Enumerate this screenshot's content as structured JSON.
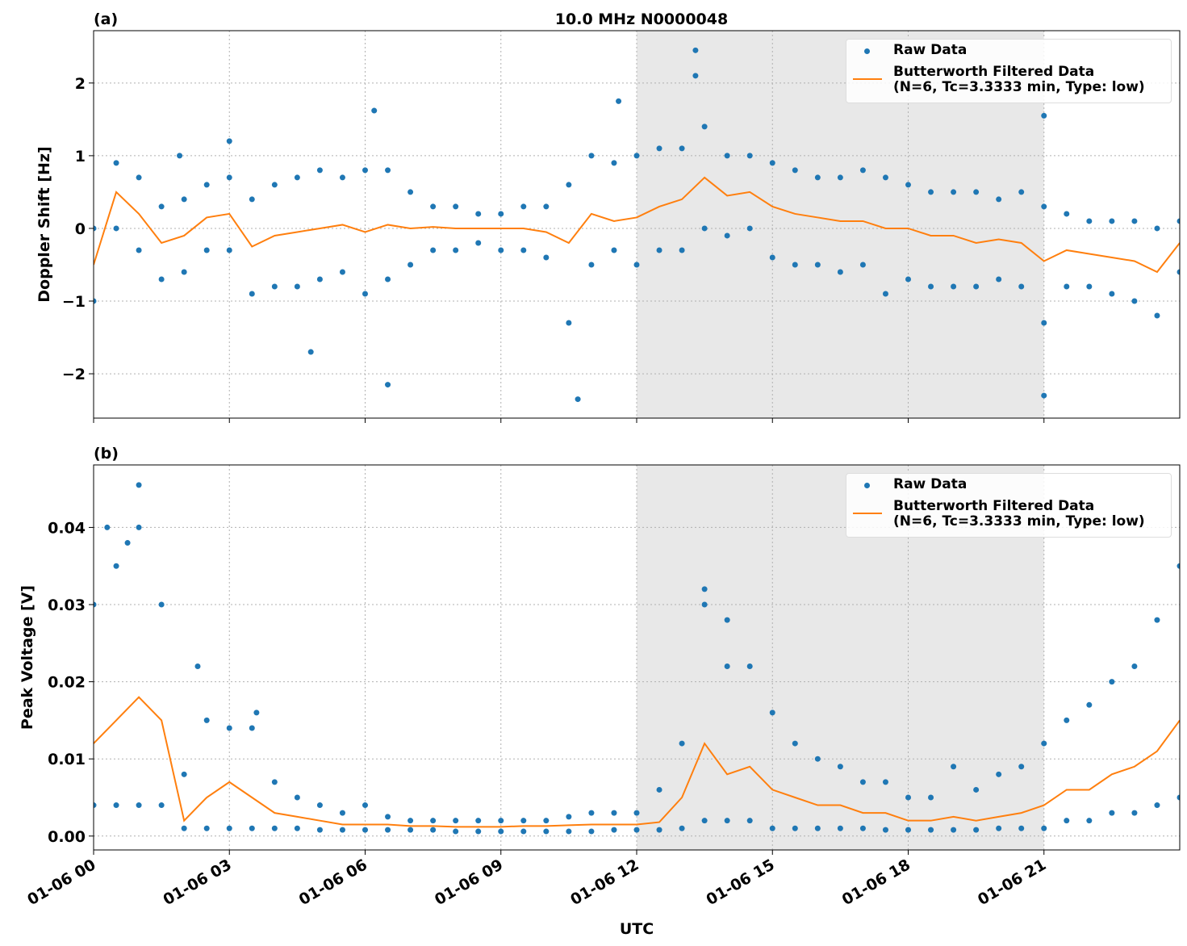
{
  "chart_data": [
    {
      "type": "scatter",
      "title": "10.0 MHz N0000048",
      "panel_label": "(a)",
      "ylabel": "Doppler Shift [Hz]",
      "xlim": [
        0,
        24
      ],
      "xticks": [
        0,
        3,
        6,
        9,
        12,
        15,
        18,
        21
      ],
      "ylim": [
        -2.61,
        2.72
      ],
      "yticks": [
        {
          "value": -2,
          "label": "−2"
        },
        {
          "value": -1,
          "label": "−1"
        },
        0,
        1,
        2
      ],
      "grid": true,
      "legend": "upper right",
      "span": [
        12,
        21
      ],
      "span_color": "#e8e8e8",
      "series": [
        {
          "name": "Raw Data",
          "type": "scatter",
          "color": "#1f77b4",
          "x": [
            0,
            0,
            0.5,
            0.5,
            1,
            1,
            1.5,
            1.5,
            2,
            2,
            2.5,
            2.5,
            3,
            3,
            3.5,
            3.5,
            4,
            4,
            4.5,
            4.5,
            5,
            5,
            5.5,
            5.5,
            6,
            6,
            6.5,
            6.5,
            7,
            7,
            7.5,
            7.5,
            8,
            8,
            8.5,
            8.5,
            9,
            9,
            9.5,
            9.5,
            10,
            10,
            10.5,
            10.5,
            11,
            11,
            11.5,
            11.5,
            12,
            12,
            12.5,
            12.5,
            13,
            13,
            13.5,
            13.5,
            14,
            14,
            14.5,
            14.5,
            15,
            15,
            15.5,
            15.5,
            16,
            16,
            16.5,
            16.5,
            17,
            17,
            17.5,
            17.5,
            18,
            18,
            18.5,
            18.5,
            19,
            19,
            19.5,
            19.5,
            20,
            20,
            20.5,
            20.5,
            21,
            21,
            21.5,
            21.5,
            22,
            22,
            22.5,
            22.5,
            23,
            23,
            23.5,
            23.5,
            24,
            24,
            6.2,
            11.6,
            13.3,
            13.3,
            10.7,
            6.5,
            21.0,
            21.0,
            1.9,
            3.0,
            4.8
          ],
          "values": [
            0.0,
            -1.0,
            0.9,
            0.0,
            0.7,
            -0.3,
            0.3,
            -0.7,
            0.4,
            -0.6,
            0.6,
            -0.3,
            0.7,
            -0.3,
            0.4,
            -0.9,
            0.6,
            -0.8,
            0.7,
            -0.8,
            0.8,
            -0.7,
            0.7,
            -0.6,
            0.8,
            -0.9,
            0.8,
            -0.7,
            0.5,
            -0.5,
            0.3,
            -0.3,
            0.3,
            -0.3,
            0.2,
            -0.2,
            0.2,
            -0.3,
            0.3,
            -0.3,
            0.3,
            -0.4,
            0.6,
            -1.3,
            1.0,
            -0.5,
            0.9,
            -0.3,
            1.0,
            -0.5,
            1.1,
            -0.3,
            1.1,
            -0.3,
            1.4,
            0.0,
            1.0,
            -0.1,
            1.0,
            0.0,
            0.9,
            -0.4,
            0.8,
            -0.5,
            0.7,
            -0.5,
            0.7,
            -0.6,
            0.8,
            -0.5,
            0.7,
            -0.9,
            0.6,
            -0.7,
            0.5,
            -0.8,
            0.5,
            -0.8,
            0.5,
            -0.8,
            0.4,
            -0.7,
            0.5,
            -0.8,
            0.3,
            -1.3,
            0.2,
            -0.8,
            0.1,
            -0.8,
            0.1,
            -0.9,
            0.1,
            -1.0,
            0.0,
            -1.2,
            0.1,
            -0.6,
            1.62,
            1.75,
            2.45,
            2.1,
            -2.35,
            -2.15,
            -2.3,
            1.55,
            1.0,
            1.2,
            -1.7
          ]
        },
        {
          "name": "Butterworth Filtered Data\n(N=6, Tc=3.3333 min, Type: low)",
          "type": "line",
          "color": "#ff7f0e",
          "x": [
            0,
            0.5,
            1,
            1.5,
            2,
            2.5,
            3,
            3.5,
            4,
            4.5,
            5,
            5.5,
            6,
            6.5,
            7,
            7.5,
            8,
            8.5,
            9,
            9.5,
            10,
            10.5,
            11,
            11.5,
            12,
            12.5,
            13,
            13.5,
            14,
            14.5,
            15,
            15.5,
            16,
            16.5,
            17,
            17.5,
            18,
            18.5,
            19,
            19.5,
            20,
            20.5,
            21,
            21.5,
            22,
            22.5,
            23,
            23.5,
            24
          ],
          "values": [
            -0.5,
            0.5,
            0.2,
            -0.2,
            -0.1,
            0.15,
            0.2,
            -0.25,
            -0.1,
            -0.05,
            0.0,
            0.05,
            -0.05,
            0.05,
            0.0,
            0.02,
            0.0,
            0.0,
            0.0,
            0.0,
            -0.05,
            -0.2,
            0.2,
            0.1,
            0.15,
            0.3,
            0.4,
            0.7,
            0.45,
            0.5,
            0.3,
            0.2,
            0.15,
            0.1,
            0.1,
            0.0,
            0.0,
            -0.1,
            -0.1,
            -0.2,
            -0.15,
            -0.2,
            -0.45,
            -0.3,
            -0.35,
            -0.4,
            -0.45,
            -0.6,
            -0.2
          ]
        }
      ]
    },
    {
      "type": "scatter",
      "panel_label": "(b)",
      "ylabel": "Peak Voltage [V]",
      "xlabel": "UTC",
      "xlim": [
        0,
        24
      ],
      "xticks": [
        {
          "value": 0,
          "label": "01-06 00"
        },
        {
          "value": 3,
          "label": "01-06 03"
        },
        {
          "value": 6,
          "label": "01-06 06"
        },
        {
          "value": 9,
          "label": "01-06 09"
        },
        {
          "value": 12,
          "label": "01-06 12"
        },
        {
          "value": 15,
          "label": "01-06 15"
        },
        {
          "value": 18,
          "label": "01-06 18"
        },
        {
          "value": 21,
          "label": "01-06 21"
        }
      ],
      "ylim": [
        -0.0018,
        0.0481
      ],
      "yticks": [
        {
          "value": 0,
          "label": "0.00"
        },
        {
          "value": 0.01,
          "label": "0.01"
        },
        {
          "value": 0.02,
          "label": "0.02"
        },
        {
          "value": 0.03,
          "label": "0.03"
        },
        {
          "value": 0.04,
          "label": "0.04"
        }
      ],
      "grid": true,
      "legend": "upper right",
      "span": [
        12,
        21
      ],
      "span_color": "#e8e8e8",
      "series": [
        {
          "name": "Raw Data",
          "type": "scatter",
          "color": "#1f77b4",
          "x": [
            0,
            0,
            0.5,
            0.5,
            1,
            1,
            1.5,
            1.5,
            2,
            2,
            2.5,
            2.5,
            3,
            3,
            3.5,
            3.5,
            4,
            4,
            4.5,
            4.5,
            5,
            5,
            5.5,
            5.5,
            6,
            6,
            6.5,
            6.5,
            7,
            7,
            7.5,
            7.5,
            8,
            8,
            8.5,
            8.5,
            9,
            9,
            9.5,
            9.5,
            10,
            10,
            10.5,
            10.5,
            11,
            11,
            11.5,
            11.5,
            12,
            12,
            12.5,
            12.5,
            13,
            13,
            13.5,
            13.5,
            14,
            14,
            14.5,
            14.5,
            15,
            15,
            15.5,
            15.5,
            16,
            16,
            16.5,
            16.5,
            17,
            17,
            17.5,
            17.5,
            18,
            18,
            18.5,
            18.5,
            19,
            19,
            19.5,
            19.5,
            20,
            20,
            20.5,
            20.5,
            21,
            21,
            21.5,
            21.5,
            22,
            22,
            22.5,
            22.5,
            23,
            23,
            23.5,
            23.5,
            24,
            24,
            1.0,
            0.3,
            0.75,
            13.5,
            14.0,
            2.3,
            3.6
          ],
          "values": [
            0.03,
            0.004,
            0.035,
            0.004,
            0.04,
            0.004,
            0.03,
            0.004,
            0.008,
            0.001,
            0.015,
            0.001,
            0.014,
            0.001,
            0.014,
            0.001,
            0.007,
            0.001,
            0.005,
            0.001,
            0.004,
            0.0008,
            0.003,
            0.0008,
            0.004,
            0.0008,
            0.0025,
            0.0008,
            0.002,
            0.0008,
            0.002,
            0.0008,
            0.002,
            0.0006,
            0.002,
            0.0006,
            0.002,
            0.0006,
            0.002,
            0.0006,
            0.002,
            0.0006,
            0.0025,
            0.0006,
            0.003,
            0.0006,
            0.003,
            0.0008,
            0.003,
            0.0008,
            0.006,
            0.0008,
            0.012,
            0.001,
            0.03,
            0.002,
            0.022,
            0.002,
            0.022,
            0.002,
            0.016,
            0.001,
            0.012,
            0.001,
            0.01,
            0.001,
            0.009,
            0.001,
            0.007,
            0.001,
            0.007,
            0.0008,
            0.005,
            0.0008,
            0.005,
            0.0008,
            0.009,
            0.0008,
            0.006,
            0.0008,
            0.008,
            0.001,
            0.009,
            0.001,
            0.012,
            0.001,
            0.015,
            0.002,
            0.017,
            0.002,
            0.02,
            0.003,
            0.022,
            0.003,
            0.028,
            0.004,
            0.035,
            0.005,
            0.0455,
            0.04,
            0.038,
            0.032,
            0.028,
            0.022,
            0.016
          ]
        },
        {
          "name": "Butterworth Filtered Data\n(N=6, Tc=3.3333 min, Type: low)",
          "type": "line",
          "color": "#ff7f0e",
          "x": [
            0,
            0.5,
            1,
            1.5,
            2,
            2.5,
            3,
            3.5,
            4,
            4.5,
            5,
            5.5,
            6,
            6.5,
            7,
            7.5,
            8,
            8.5,
            9,
            9.5,
            10,
            10.5,
            11,
            11.5,
            12,
            12.5,
            13,
            13.5,
            14,
            14.5,
            15,
            15.5,
            16,
            16.5,
            17,
            17.5,
            18,
            18.5,
            19,
            19.5,
            20,
            20.5,
            21,
            21.5,
            22,
            22.5,
            23,
            23.5,
            24
          ],
          "values": [
            0.012,
            0.015,
            0.018,
            0.015,
            0.002,
            0.005,
            0.007,
            0.005,
            0.003,
            0.0025,
            0.002,
            0.0015,
            0.0015,
            0.0015,
            0.0013,
            0.0013,
            0.0012,
            0.0012,
            0.0012,
            0.0013,
            0.0013,
            0.0014,
            0.0015,
            0.0015,
            0.0015,
            0.0018,
            0.005,
            0.012,
            0.008,
            0.009,
            0.006,
            0.005,
            0.004,
            0.004,
            0.003,
            0.003,
            0.002,
            0.002,
            0.0025,
            0.002,
            0.0025,
            0.003,
            0.004,
            0.006,
            0.006,
            0.008,
            0.009,
            0.011,
            0.015
          ]
        }
      ]
    }
  ]
}
